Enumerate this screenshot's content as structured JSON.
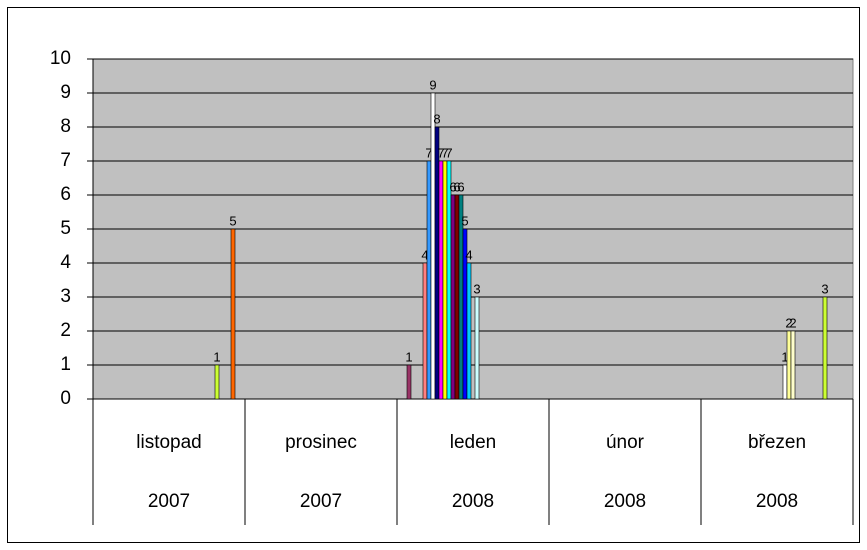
{
  "chart_data": {
    "type": "bar",
    "categories": [
      "listopad",
      "prosinec",
      "leden",
      "únor",
      "březen"
    ],
    "category_years": [
      "2007",
      "2007",
      "2008",
      "2008",
      "2008"
    ],
    "ylim": [
      0,
      10
    ],
    "yticks": [
      0,
      1,
      2,
      3,
      4,
      5,
      6,
      7,
      8,
      9,
      10
    ],
    "grid": true,
    "plot_background": "#c0c0c0",
    "series": [
      {
        "color": "#993366",
        "values": [
          null,
          null,
          1,
          null,
          null
        ]
      },
      {
        "color": "#ffffcc",
        "values": [
          null,
          null,
          null,
          null,
          null
        ]
      },
      {
        "color": "#ccffff",
        "values": [
          null,
          null,
          null,
          null,
          null
        ]
      },
      {
        "color": "#660066",
        "values": [
          null,
          null,
          null,
          null,
          null
        ]
      },
      {
        "color": "#ff8080",
        "values": [
          null,
          null,
          4,
          null,
          null
        ]
      },
      {
        "color": "#3399ff",
        "values": [
          null,
          null,
          7,
          null,
          null
        ]
      },
      {
        "color": "#ffffff",
        "values": [
          null,
          null,
          9,
          null,
          null
        ]
      },
      {
        "color": "#000080",
        "values": [
          null,
          null,
          8,
          null,
          null
        ]
      },
      {
        "color": "#ff00ff",
        "values": [
          null,
          null,
          7,
          null,
          null
        ]
      },
      {
        "color": "#ffff00",
        "values": [
          null,
          null,
          7,
          null,
          null
        ]
      },
      {
        "color": "#00ffff",
        "values": [
          null,
          null,
          7,
          null,
          null
        ]
      },
      {
        "color": "#800080",
        "values": [
          null,
          null,
          6,
          null,
          null
        ]
      },
      {
        "color": "#800000",
        "values": [
          null,
          null,
          6,
          null,
          null
        ]
      },
      {
        "color": "#008080",
        "values": [
          null,
          null,
          6,
          null,
          null
        ]
      },
      {
        "color": "#0000ff",
        "values": [
          null,
          null,
          5,
          null,
          null
        ]
      },
      {
        "color": "#00ccff",
        "values": [
          null,
          null,
          4,
          null,
          null
        ]
      },
      {
        "color": "#ccffcc",
        "values": [
          null,
          null,
          null,
          null,
          null
        ]
      },
      {
        "color": "#ccffff",
        "values": [
          null,
          null,
          3,
          null,
          null
        ]
      },
      {
        "color": "#ffffff",
        "values": [
          null,
          null,
          null,
          null,
          1
        ]
      },
      {
        "color": "#ffff99",
        "values": [
          null,
          null,
          null,
          null,
          2
        ]
      },
      {
        "color": "#ffffcc",
        "values": [
          null,
          null,
          null,
          null,
          2
        ]
      },
      {
        "color": "#ff99cc",
        "values": [
          null,
          null,
          null,
          null,
          null
        ]
      },
      {
        "color": "#cc99ff",
        "values": [
          null,
          null,
          null,
          null,
          null
        ]
      },
      {
        "color": "#ffcc99",
        "values": [
          null,
          null,
          null,
          null,
          null
        ]
      },
      {
        "color": "#3366ff",
        "values": [
          null,
          null,
          null,
          null,
          null
        ]
      },
      {
        "color": "#33cccc",
        "values": [
          null,
          null,
          null,
          null,
          null
        ]
      },
      {
        "color": "#99cc00",
        "values": [
          null,
          null,
          null,
          null,
          null
        ]
      },
      {
        "color": "#ffcc00",
        "values": [
          null,
          null,
          null,
          null,
          null
        ]
      },
      {
        "color": "#ccff33",
        "values": [
          1,
          null,
          null,
          null,
          3
        ]
      },
      {
        "color": "#ff9900",
        "values": [
          null,
          null,
          null,
          null,
          null
        ]
      },
      {
        "color": "#666699",
        "values": [
          null,
          null,
          null,
          null,
          null
        ]
      },
      {
        "color": "#969696",
        "values": [
          null,
          null,
          null,
          null,
          null
        ]
      },
      {
        "color": "#ff6600",
        "values": [
          5,
          null,
          null,
          null,
          null
        ]
      }
    ]
  }
}
